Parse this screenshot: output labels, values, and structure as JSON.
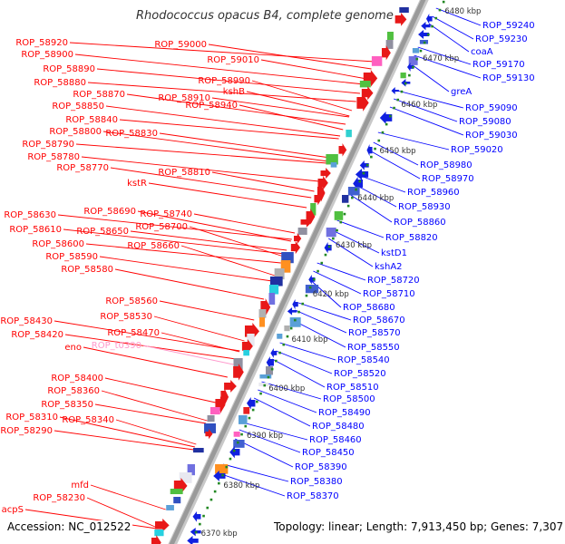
{
  "title": "Rhodococcus opacus B4, complete genome",
  "footer": {
    "accession": "Accession: NC_012522",
    "topology": "Topology: linear; Length: 7,913,450 bp; Genes: 7,307"
  },
  "colors": {
    "left_label": "#ff0000",
    "right_label": "#0000ff",
    "rna_label": "#ff99cc",
    "scale": "#228822",
    "backbone": "#9a9a9a"
  },
  "scale_ticks": [
    "6480 kbp",
    "6470 kbp",
    "6460 kbp",
    "6450 kbp",
    "6440 kbp",
    "6430 kbp",
    "6420 kbp",
    "6410 kbp",
    "6400 kbp",
    "6390 kbp",
    "6380 kbp",
    "6370 kbp"
  ],
  "left_labels": [
    "ROP_58920",
    "ROP_59000",
    "ROP_58900",
    "ROP_59010",
    "ROP_58890",
    "ROP_58990",
    "ROP_58880",
    "kshB",
    "ROP_58870",
    "ROP_58910",
    "ROP_58940",
    "ROP_58850",
    "ROP_58840",
    "ROP_58830",
    "ROP_58800",
    "ROP_58790",
    "ROP_58780",
    "ROP_58770",
    "ROP_58810",
    "kstR",
    "ROP_58690",
    "ROP_58740",
    "ROP_58630",
    "ROP_58700",
    "ROP_58650",
    "ROP_58610",
    "ROP_58660",
    "ROP_58600",
    "ROP_58590",
    "ROP_58580",
    "ROP_58560",
    "ROP_58530",
    "ROP_58430",
    "ROP_58470",
    "ROP_58420",
    "eno",
    "ROP_t0390",
    "ROP_58400",
    "ROP_58360",
    "ROP_58350",
    "ROP_58340",
    "ROP_58310",
    "ROP_58290",
    "mfd",
    "ROP_58230",
    "acpS"
  ],
  "right_labels": [
    "ROP_59240",
    "ROP_59230",
    "coaA",
    "ROP_59170",
    "ROP_59130",
    "greA",
    "ROP_59090",
    "ROP_59080",
    "ROP_59030",
    "ROP_59020",
    "ROP_58980",
    "ROP_58970",
    "ROP_58960",
    "ROP_58930",
    "ROP_58860",
    "ROP_58820",
    "kstD1",
    "kshA2",
    "ROP_58720",
    "ROP_58710",
    "ROP_58680",
    "ROP_58670",
    "ROP_58570",
    "ROP_58550",
    "ROP_58540",
    "ROP_58520",
    "ROP_58510",
    "ROP_58500",
    "ROP_58490",
    "ROP_58480",
    "ROP_58460",
    "ROP_58450",
    "ROP_58390",
    "ROP_58380",
    "ROP_58370"
  ]
}
